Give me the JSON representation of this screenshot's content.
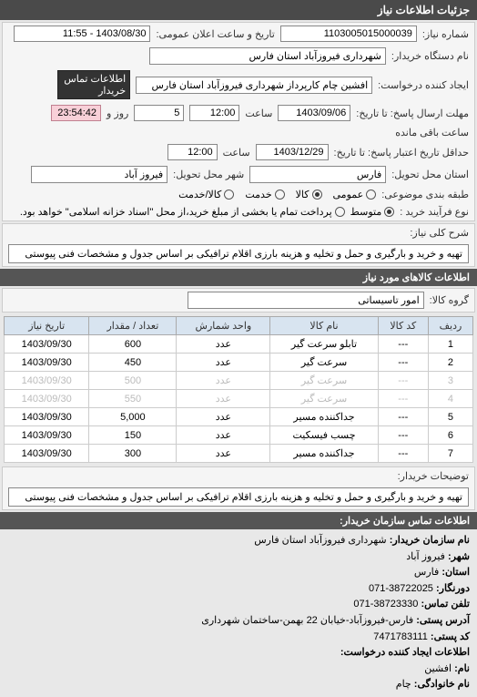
{
  "header": "جزئیات اطلاعات نیاز",
  "top": {
    "need_no_label": "شماره نیاز:",
    "need_no": "1103005015000039",
    "announce_label": "تاریخ و ساعت اعلان عمومی:",
    "announce_value": "1403/08/30 - 11:55",
    "buyer_label": "نام دستگاه خریدار:",
    "buyer": "شهرداری فیروزآباد استان فارس",
    "requester_label": "ایجاد کننده درخواست:",
    "requester": "افشین چام کارپرداز شهرداری فیروزآباد استان فارس",
    "contact_buyer": "اطلاعات تماس خریدار",
    "deadline_send_label": "مهلت ارسال پاسخ: تا تاریخ:",
    "deadline_date": "1403/09/06",
    "time_label": "ساعت",
    "deadline_time": "12:00",
    "days_label": "روز و",
    "days_value": "5",
    "remaining": "ساعت باقی مانده",
    "remaining_time": "23:54:42",
    "validity_label": "حداقل تاریخ اعتبار پاسخ: تا تاریخ:",
    "validity_date": "1403/12/29",
    "validity_time": "12:00",
    "province_label": "استان محل تحویل:",
    "province": "فارس",
    "city_label": "شهر محل تحویل:",
    "city": "فیروز آباد",
    "budget_label": "طبقه بندی موضوعی:",
    "budget_options": [
      "عمومی",
      "کالا",
      "خدمت",
      "کالا/خدمت"
    ],
    "budget_selected": 1,
    "purchase_label": "نوع فرآیند خرید :",
    "purchase_options": [
      "متوسط"
    ],
    "purchase_note": "پرداخت تمام یا بخشی از مبلغ خرید،از محل \"اسناد خزانه اسلامی\" خواهد بود."
  },
  "desc": {
    "label": "شرح کلی نیاز:",
    "text": "تهیه و خرید و بارگیری و حمل و تخلیه و هزینه بارزی اقلام ترافیکی بر اساس جدول و مشخصات فنی پیوستی"
  },
  "goods_header": "اطلاعات کالاهای مورد نیاز",
  "group": {
    "label": "گروه کالا:",
    "value": "امور تاسیساتی"
  },
  "table": {
    "headers": [
      "ردیف",
      "کد کالا",
      "نام کالا",
      "واحد شمارش",
      "تعداد / مقدار",
      "تاریخ نیاز"
    ],
    "rows": [
      [
        "1",
        "---",
        "تابلو سرعت گیر",
        "عدد",
        "600",
        "1403/09/30"
      ],
      [
        "2",
        "---",
        "سرعت گیر",
        "عدد",
        "450",
        "1403/09/30"
      ],
      [
        "3",
        "---",
        "سرعت گیر",
        "عدد",
        "500",
        "1403/09/30"
      ],
      [
        "4",
        "---",
        "سرعت گیر",
        "عدد",
        "550",
        "1403/09/30"
      ],
      [
        "5",
        "---",
        "جداکننده مسیر",
        "عدد",
        "5,000",
        "1403/09/30"
      ],
      [
        "6",
        "---",
        "چسب فیسکیت",
        "عدد",
        "150",
        "1403/09/30"
      ],
      [
        "7",
        "---",
        "جداکننده مسیر",
        "عدد",
        "300",
        "1403/09/30"
      ]
    ],
    "watermark": "پایگاه خبری مناقصات و مزایدات هزاره ۰۲۱-۸۸۳۴۹۶۷۰"
  },
  "buyer_note": {
    "label": "توضیحات خریدار:",
    "text": "تهیه و خرید و بارگیری و حمل و تخلیه و هزینه بارزی اقلام ترافیکی بر اساس جدول و مشخصات فنی پیوستی"
  },
  "contact_header": "اطلاعات تماس سازمان خریدار:",
  "contact": {
    "org_label": "نام سازمان خریدار:",
    "org": "شهرداری فیروزآباد استان فارس",
    "city_label": "شهر:",
    "city": "فیروز آباد",
    "province_label": "استان:",
    "province": "فارس",
    "fax_label": "دورنگار:",
    "fax": "38722025-071",
    "phone_label": "تلفن تماس:",
    "phone": "38723330-071",
    "postal_label": "آدرس پستی:",
    "postal": "فارس-فیروزآباد-خیابان 22 بهمن-ساختمان شهرداری",
    "postcode_label": "کد پستی:",
    "postcode": "7471783111",
    "creator_header": "اطلاعات ایجاد کننده درخواست:",
    "name_label": "نام:",
    "name": "افشین",
    "family_label": "نام خانوادگی:",
    "family": "چام"
  }
}
